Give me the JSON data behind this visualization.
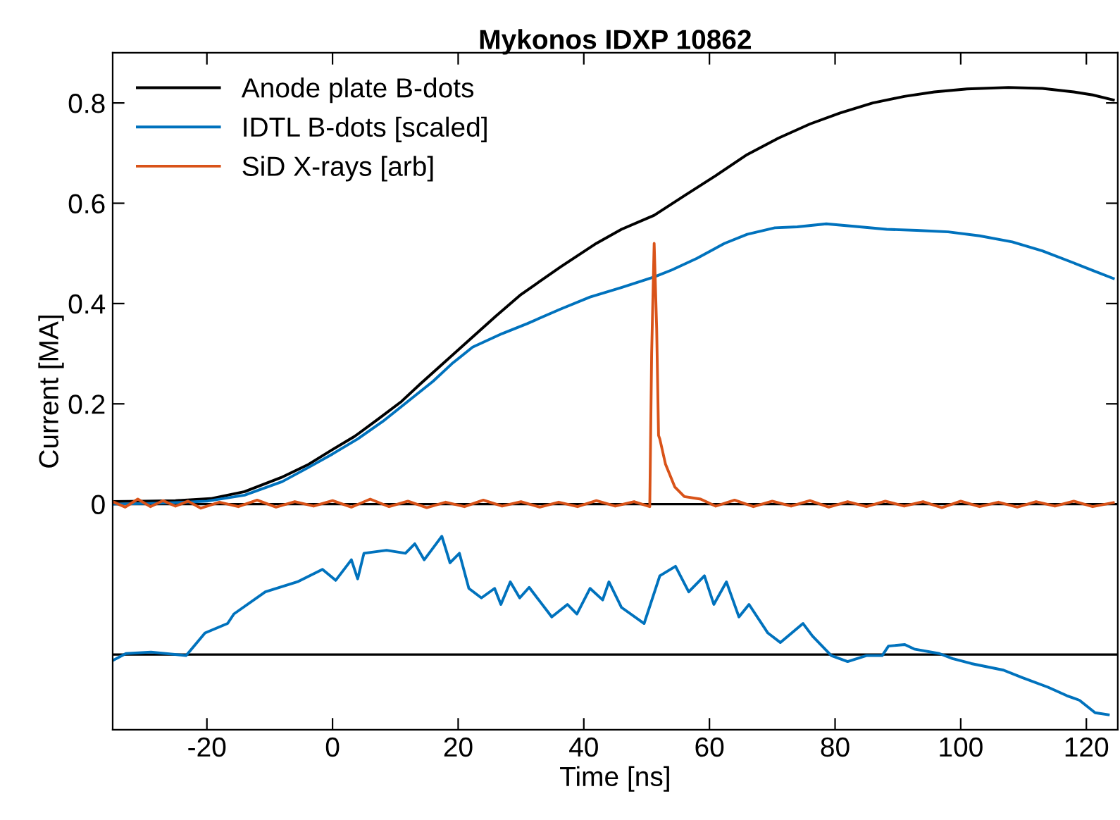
{
  "chart_data": {
    "type": "line",
    "title": "Mykonos IDXP 10862",
    "xlabel": "Time [ns]",
    "ylabel": "Current [MA]",
    "xlim": [
      -35,
      125
    ],
    "xticks": [
      -20,
      0,
      20,
      40,
      60,
      80,
      100,
      120
    ],
    "ylim": [
      -0.45,
      0.9
    ],
    "yticks": [
      0,
      0.2,
      0.4,
      0.6,
      0.8
    ],
    "legend": "top left",
    "grid": false,
    "ref_lines": [
      {
        "axis": "y",
        "value": 0,
        "color": "#000000"
      },
      {
        "axis": "y",
        "value": -0.3,
        "color": "#000000"
      }
    ],
    "series": [
      {
        "name": "Anode plate B-dots",
        "color": "#000000",
        "x": [
          -35,
          -30,
          -25,
          -19.4,
          -14,
          -8.2,
          -4,
          0,
          3.5,
          7.3,
          11,
          14,
          18,
          22,
          26,
          30,
          36.3,
          42,
          46,
          51.2,
          56,
          61,
          66,
          71,
          76,
          80.8,
          86,
          91,
          95.8,
          101,
          107.6,
          113,
          118,
          121,
          124.3
        ],
        "values": [
          0.005,
          0.006,
          0.007,
          0.011,
          0.025,
          0.053,
          0.078,
          0.109,
          0.135,
          0.17,
          0.205,
          0.24,
          0.285,
          0.33,
          0.375,
          0.418,
          0.473,
          0.52,
          0.548,
          0.576,
          0.615,
          0.655,
          0.697,
          0.73,
          0.758,
          0.78,
          0.8,
          0.813,
          0.822,
          0.828,
          0.831,
          0.829,
          0.822,
          0.816,
          0.806
        ]
      },
      {
        "name": "IDTL B-dots [scaled]",
        "color": "#0072bd",
        "x": [
          -35,
          -30,
          -25,
          -20,
          -14,
          -8,
          -4,
          0,
          4,
          8,
          12,
          16,
          19,
          22.3,
          27,
          31,
          36.3,
          41,
          46,
          51.2,
          54,
          58,
          62.4,
          66,
          70.4,
          74,
          78.6,
          83,
          88.2,
          93,
          98,
          103,
          108.2,
          113,
          118,
          121,
          124.3
        ],
        "values": [
          0.0,
          0.001,
          0.003,
          0.006,
          0.018,
          0.045,
          0.072,
          0.1,
          0.13,
          0.165,
          0.205,
          0.245,
          0.28,
          0.313,
          0.34,
          0.36,
          0.389,
          0.413,
          0.432,
          0.453,
          0.467,
          0.49,
          0.52,
          0.538,
          0.551,
          0.553,
          0.559,
          0.554,
          0.548,
          0.546,
          0.543,
          0.535,
          0.523,
          0.505,
          0.481,
          0.466,
          0.45
        ]
      },
      {
        "name": "SiD X-rays [arb]",
        "color": "#d95319",
        "x": [
          -35,
          -33,
          -31,
          -29,
          -27,
          -25,
          -23,
          -21,
          -18,
          -15,
          -12,
          -9,
          -6,
          -3,
          0,
          3,
          6,
          9,
          12,
          15,
          18,
          21,
          24,
          27,
          30,
          33,
          36,
          39,
          42,
          45,
          48,
          50.5,
          50.8,
          51.2,
          51.6,
          51.9,
          52.1,
          53,
          54.5,
          56,
          58.6,
          61,
          64,
          67,
          70,
          73,
          76,
          79,
          82,
          85,
          88,
          91,
          94,
          97,
          100,
          103,
          106,
          109,
          112,
          115,
          118,
          121,
          124.3
        ],
        "values": [
          0.005,
          -0.006,
          0.01,
          -0.005,
          0.007,
          -0.004,
          0.006,
          -0.008,
          0.004,
          -0.005,
          0.008,
          -0.006,
          0.005,
          -0.004,
          0.007,
          -0.006,
          0.01,
          -0.005,
          0.006,
          -0.007,
          0.004,
          -0.005,
          0.008,
          -0.004,
          0.005,
          -0.006,
          0.004,
          -0.005,
          0.007,
          -0.004,
          0.005,
          -0.005,
          0.3,
          0.52,
          0.35,
          0.137,
          0.13,
          0.08,
          0.034,
          0.015,
          0.01,
          -0.004,
          0.008,
          -0.005,
          0.006,
          -0.004,
          0.007,
          -0.006,
          0.005,
          -0.005,
          0.006,
          -0.004,
          0.005,
          -0.007,
          0.006,
          -0.005,
          0.004,
          -0.006,
          0.005,
          -0.004,
          0.006,
          -0.005,
          0.003
        ]
      },
      {
        "color": "#0072bd",
        "x": [
          -35,
          -32.9,
          -28.9,
          -23.3,
          -20.3,
          -16.7,
          -15.7,
          -10.7,
          -5.6,
          -1.6,
          0.5,
          3.0,
          4.0,
          5.0,
          8.6,
          11.6,
          13.1,
          14.6,
          17.4,
          18.7,
          20.2,
          21.7,
          23.7,
          25.8,
          26.8,
          28.3,
          29.8,
          31.3,
          34.9,
          37.4,
          38.9,
          41.0,
          43.0,
          44.0,
          46.0,
          49.6,
          52.1,
          54.6,
          56.7,
          59.2,
          60.7,
          62.7,
          64.7,
          66.3,
          69.3,
          71.3,
          74.9,
          76.4,
          79.4,
          82.0,
          85.0,
          87.5,
          88.5,
          91.1,
          92.6,
          96.6,
          98.7,
          101.7,
          106.8,
          109.8,
          113.9,
          116.9,
          118.9,
          121.4,
          123.5
        ],
        "values": [
          -0.312,
          -0.298,
          -0.295,
          -0.302,
          -0.257,
          -0.238,
          -0.219,
          -0.175,
          -0.155,
          -0.13,
          -0.152,
          -0.111,
          -0.149,
          -0.098,
          -0.092,
          -0.098,
          -0.079,
          -0.111,
          -0.064,
          -0.117,
          -0.098,
          -0.168,
          -0.187,
          -0.168,
          -0.2,
          -0.155,
          -0.187,
          -0.166,
          -0.225,
          -0.2,
          -0.219,
          -0.168,
          -0.191,
          -0.155,
          -0.206,
          -0.238,
          -0.143,
          -0.124,
          -0.175,
          -0.143,
          -0.2,
          -0.155,
          -0.225,
          -0.2,
          -0.257,
          -0.276,
          -0.238,
          -0.263,
          -0.302,
          -0.314,
          -0.302,
          -0.302,
          -0.283,
          -0.28,
          -0.289,
          -0.298,
          -0.308,
          -0.318,
          -0.331,
          -0.346,
          -0.365,
          -0.382,
          -0.391,
          -0.416,
          -0.42
        ]
      }
    ]
  }
}
